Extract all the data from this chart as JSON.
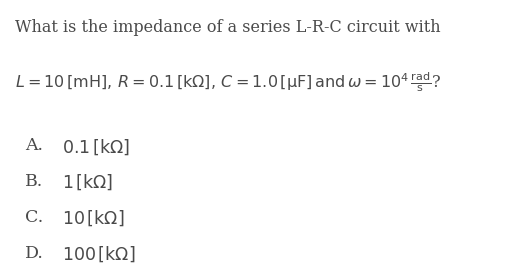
{
  "background_color": "#ffffff",
  "text_color": "#4a4a4a",
  "title_line": "What is the impedance of a series L-R-C circuit with",
  "equation_parts": {
    "main": "$L = 10\\,\\mathrm{[mH]},\\, R = 0.1\\,\\mathrm{[k\\Omega]},\\, C = 1.0\\,\\mathrm{[\\mu F]}\\,\\mathrm{and}\\, \\omega = 10^{4}\\,\\dfrac{\\mathrm{rad}}{\\mathrm{s}}$?"
  },
  "choices": [
    {
      "label": "A.",
      "text": "$0.1\\,\\mathrm{[k\\Omega]}$"
    },
    {
      "label": "B.",
      "text": "$1\\,\\mathrm{[k\\Omega]}$"
    },
    {
      "label": "C.",
      "text": "$10\\,\\mathrm{[k\\Omega]}$"
    },
    {
      "label": "D.",
      "text": "$100\\,\\mathrm{[k\\Omega]}$"
    }
  ],
  "title_fontsize": 11.5,
  "eq_fontsize": 11.5,
  "choice_fontsize": 12.5,
  "label_fontsize": 12.5
}
